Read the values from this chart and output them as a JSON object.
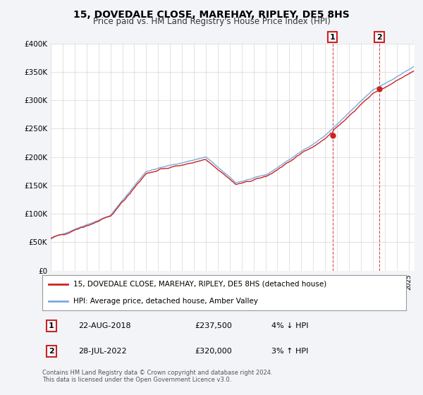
{
  "title": "15, DOVEDALE CLOSE, MAREHAY, RIPLEY, DE5 8HS",
  "subtitle": "Price paid vs. HM Land Registry's House Price Index (HPI)",
  "ylim": [
    0,
    400000
  ],
  "yticks": [
    0,
    50000,
    100000,
    150000,
    200000,
    250000,
    300000,
    350000,
    400000
  ],
  "ytick_labels": [
    "£0",
    "£50K",
    "£100K",
    "£150K",
    "£200K",
    "£250K",
    "£300K",
    "£350K",
    "£400K"
  ],
  "hpi_color": "#7aaadd",
  "price_color": "#cc2222",
  "marker1_year": 2018.622,
  "marker1_price": 237500,
  "marker1_date": "22-AUG-2018",
  "marker1_hpi_diff": "4% ↓ HPI",
  "marker2_year": 2022.538,
  "marker2_price": 320000,
  "marker2_date": "28-JUL-2022",
  "marker2_hpi_diff": "3% ↑ HPI",
  "legend_label1": "15, DOVEDALE CLOSE, MAREHAY, RIPLEY, DE5 8HS (detached house)",
  "legend_label2": "HPI: Average price, detached house, Amber Valley",
  "footnote": "Contains HM Land Registry data © Crown copyright and database right 2024.\nThis data is licensed under the Open Government Licence v3.0.",
  "background_color": "#f2f4f8",
  "plot_bg_color": "#ffffff"
}
